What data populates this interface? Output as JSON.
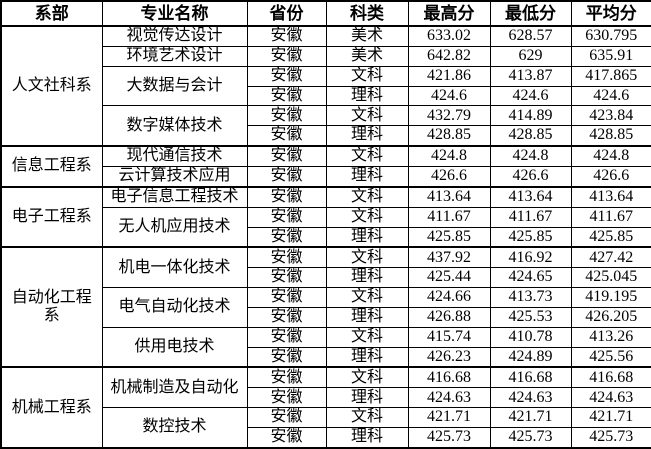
{
  "colors": {
    "background": "#ffffff",
    "border": "#000000",
    "text": "#000000"
  },
  "table": {
    "columns": [
      "系部",
      "专业名称",
      "省份",
      "科类",
      "最高分",
      "最低分",
      "平均分"
    ],
    "departments": [
      {
        "name": "人文社科系",
        "majors": [
          {
            "name": "视觉传达设计",
            "rows": [
              [
                "安徽",
                "美术",
                "633.02",
                "628.57",
                "630.795"
              ]
            ]
          },
          {
            "name": "环境艺术设计",
            "rows": [
              [
                "安徽",
                "美术",
                "642.82",
                "629",
                "635.91"
              ]
            ]
          },
          {
            "name": "大数据与会计",
            "rows": [
              [
                "安徽",
                "文科",
                "421.86",
                "413.87",
                "417.865"
              ],
              [
                "安徽",
                "理科",
                "424.6",
                "424.6",
                "424.6"
              ]
            ]
          },
          {
            "name": "数字媒体技术",
            "rows": [
              [
                "安徽",
                "文科",
                "432.79",
                "414.89",
                "423.84"
              ],
              [
                "安徽",
                "理科",
                "428.85",
                "428.85",
                "428.85"
              ]
            ]
          }
        ]
      },
      {
        "name": "信息工程系",
        "majors": [
          {
            "name": "现代通信技术",
            "rows": [
              [
                "安徽",
                "文科",
                "424.8",
                "424.8",
                "424.8"
              ]
            ]
          },
          {
            "name": "云计算技术应用",
            "rows": [
              [
                "安徽",
                "理科",
                "426.6",
                "426.6",
                "426.6"
              ]
            ]
          }
        ]
      },
      {
        "name": "电子工程系",
        "majors": [
          {
            "name": "电子信息工程技术",
            "rows": [
              [
                "安徽",
                "文科",
                "413.64",
                "413.64",
                "413.64"
              ]
            ]
          },
          {
            "name": "无人机应用技术",
            "rows": [
              [
                "安徽",
                "文科",
                "411.67",
                "411.67",
                "411.67"
              ],
              [
                "安徽",
                "理科",
                "425.85",
                "425.85",
                "425.85"
              ]
            ]
          }
        ]
      },
      {
        "name": "自动化工程系",
        "majors": [
          {
            "name": "机电一体化技术",
            "rows": [
              [
                "安徽",
                "文科",
                "437.92",
                "416.92",
                "427.42"
              ],
              [
                "安徽",
                "理科",
                "425.44",
                "424.65",
                "425.045"
              ]
            ]
          },
          {
            "name": "电气自动化技术",
            "rows": [
              [
                "安徽",
                "文科",
                "424.66",
                "413.73",
                "419.195"
              ],
              [
                "安徽",
                "理科",
                "426.88",
                "425.53",
                "426.205"
              ]
            ]
          },
          {
            "name": "供用电技术",
            "rows": [
              [
                "安徽",
                "文科",
                "415.74",
                "410.78",
                "413.26"
              ],
              [
                "安徽",
                "理科",
                "426.23",
                "424.89",
                "425.56"
              ]
            ]
          }
        ]
      },
      {
        "name": "机械工程系",
        "majors": [
          {
            "name": "机械制造及自动化",
            "rows": [
              [
                "安徽",
                "文科",
                "416.68",
                "416.68",
                "416.68"
              ],
              [
                "安徽",
                "理科",
                "424.63",
                "424.63",
                "424.63"
              ]
            ]
          },
          {
            "name": "数控技术",
            "rows": [
              [
                "安徽",
                "文科",
                "421.71",
                "421.71",
                "421.71"
              ],
              [
                "安徽",
                "理科",
                "425.73",
                "425.73",
                "425.73"
              ]
            ]
          }
        ]
      }
    ]
  }
}
